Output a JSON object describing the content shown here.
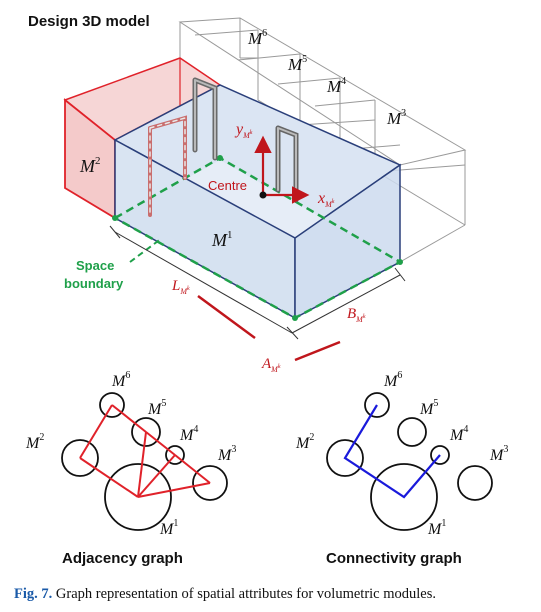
{
  "title": "Design 3D model",
  "modules": {
    "m1": {
      "base": "M",
      "sup": "1"
    },
    "m2": {
      "base": "M",
      "sup": "2"
    },
    "m3": {
      "base": "M",
      "sup": "3"
    },
    "m4": {
      "base": "M",
      "sup": "4"
    },
    "m5": {
      "base": "M",
      "sup": "5"
    },
    "m6": {
      "base": "M",
      "sup": "6"
    }
  },
  "centre_label": "Centre",
  "space_boundary": {
    "line1": "Space",
    "line2": "boundary"
  },
  "axes": {
    "y": {
      "base": "y",
      "sub": "M",
      "subsup": "k"
    },
    "x": {
      "base": "x",
      "sub": "M",
      "subsup": "k"
    }
  },
  "dimensions": {
    "length": {
      "base": "L",
      "sub": "M",
      "subsup": "k"
    },
    "breadth": {
      "base": "B",
      "sub": "M",
      "subsup": "k"
    },
    "area": {
      "base": "A",
      "sub": "M",
      "subsup": "k"
    }
  },
  "graphs": {
    "adjacency": {
      "title": "Adjacency graph"
    },
    "connectivity": {
      "title": "Connectivity graph"
    }
  },
  "caption": {
    "label": "Fig. 7.",
    "text": "Graph representation of spatial attributes for volumetric modules."
  },
  "colors": {
    "module_outline": "#9a9a9a",
    "m1_edge": "#2a3f7a",
    "m1_fill": "#dde7f4",
    "m2_edge": "#e0222a",
    "m2_fill": "#f6d6d6",
    "boundary": "#1fa04a",
    "dimension": "#c0161c",
    "adjacency_edge": "#e0222a",
    "connectivity_edge": "#1a1adb"
  }
}
